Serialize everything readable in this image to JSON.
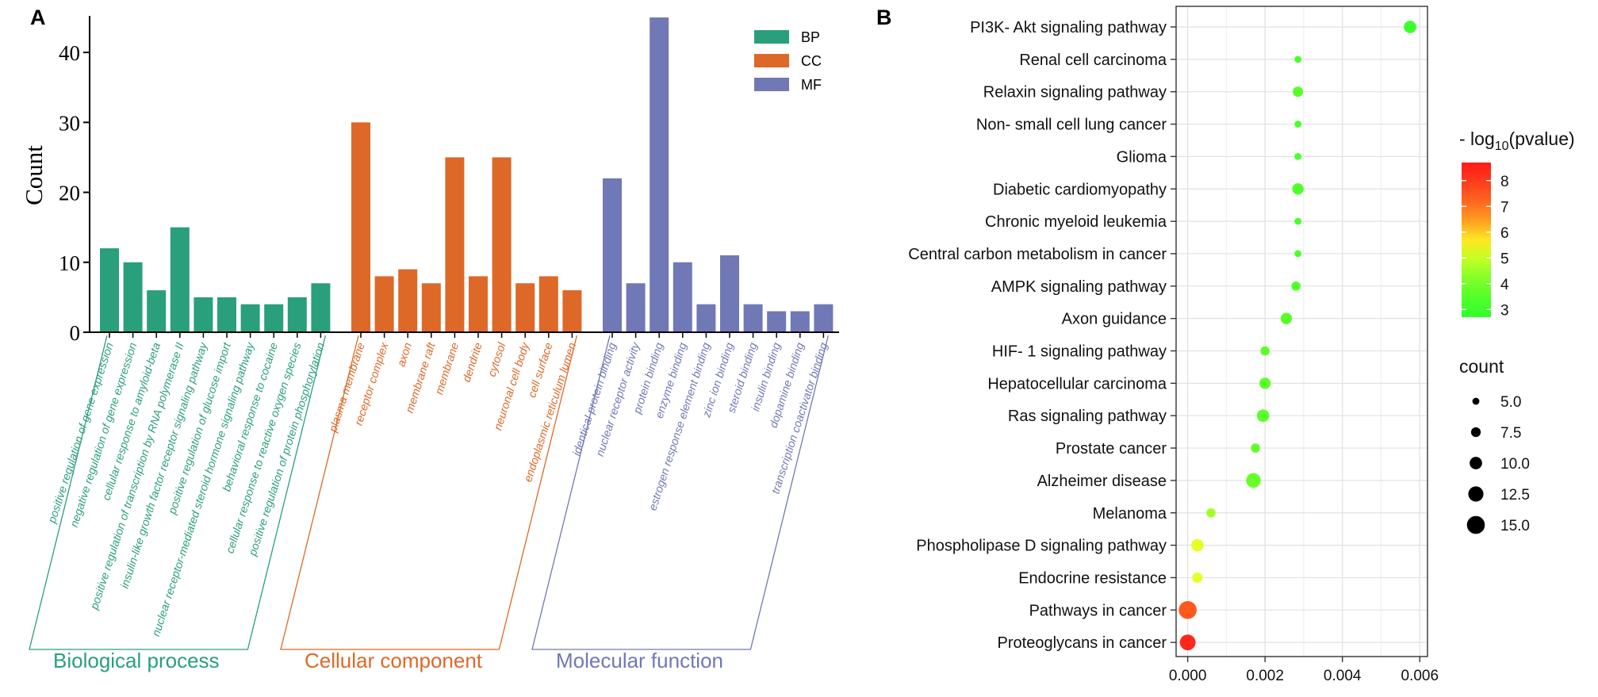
{
  "chart_data": [
    {
      "type": "bar",
      "panel_label": "A",
      "ylabel": "Count",
      "ylim": [
        0,
        45
      ],
      "yticks": [
        0,
        10,
        20,
        30,
        40
      ],
      "legend": [
        {
          "key": "BP",
          "color": "#2a9f7c"
        },
        {
          "key": "CC",
          "color": "#dd6828"
        },
        {
          "key": "MF",
          "color": "#7178b6"
        }
      ],
      "legend_position": "top-right",
      "groups": [
        {
          "key": "BP",
          "name": "Biological process",
          "color": "#2a9f7c",
          "categories": [
            "positive regulation of gene expression",
            "negative regulation of gene expression",
            "cellular response to amyloid-beta",
            "positive regulation of transcription by RNA polymerase II",
            "insulin-like growth factor receptor signaling pathway",
            "positive regulation of glucose import",
            "nuclear receptor-mediated steroid hormone signaling pathway",
            "behavioral response to cocaine",
            "cellular response to reactive oxygen species",
            "positive regulation of protein phosphorylation"
          ],
          "values": [
            12,
            10,
            6,
            15,
            5,
            5,
            4,
            4,
            5,
            7
          ]
        },
        {
          "key": "CC",
          "name": "Cellular component",
          "color": "#dd6828",
          "categories": [
            "plasma membrane",
            "receptor complex",
            "axon",
            "membrane raft",
            "membrane",
            "dendrite",
            "cytosol",
            "neuronal cell body",
            "cell surface",
            "endoplasmic reticulum lumen"
          ],
          "values": [
            30,
            8,
            9,
            7,
            25,
            8,
            25,
            7,
            8,
            6
          ]
        },
        {
          "key": "MF",
          "name": "Molecular function",
          "color": "#7178b6",
          "categories": [
            "identical protein binding",
            "nuclear receptor activity",
            "protein binding",
            "enzyme binding",
            "estrogen response element binding",
            "zinc ion binding",
            "steroid binding",
            "insulin binding",
            "dopamine binding",
            "transcription coactivator binding"
          ],
          "values": [
            22,
            7,
            45,
            10,
            4,
            11,
            4,
            3,
            3,
            4
          ]
        }
      ]
    },
    {
      "type": "scatter",
      "panel_label": "B",
      "xlim": [
        -0.0003,
        0.0062
      ],
      "xticks": [
        "0.000",
        "0.002",
        "0.004",
        "0.006"
      ],
      "grid": true,
      "color_legend_title": "- log",
      "color_legend_sub": "10",
      "color_legend_tail": "(pvalue)",
      "color_ticks": [
        "8",
        "7",
        "6",
        "5",
        "4",
        "3"
      ],
      "color_range": [
        2.7,
        8.7
      ],
      "color_low": "#2cf52c",
      "color_high": "#ff1a1a",
      "size_legend_title": "count",
      "size_ticks": [
        "5.0",
        "7.5",
        "10.0",
        "12.5",
        "15.0"
      ],
      "pathways": [
        {
          "name": "PI3K- Akt signaling pathway",
          "x": 0.00575,
          "log_p": 3.0,
          "count": 10
        },
        {
          "name": "Renal cell carcinoma",
          "x": 0.00285,
          "log_p": 3.3,
          "count": 5
        },
        {
          "name": "Relaxin signaling pathway",
          "x": 0.00285,
          "log_p": 3.5,
          "count": 8
        },
        {
          "name": "Non- small cell lung cancer",
          "x": 0.00285,
          "log_p": 3.3,
          "count": 5
        },
        {
          "name": "Glioma",
          "x": 0.00285,
          "log_p": 3.3,
          "count": 5
        },
        {
          "name": "Diabetic cardiomyopathy",
          "x": 0.00285,
          "log_p": 3.4,
          "count": 9
        },
        {
          "name": "Chronic myeloid leukemia",
          "x": 0.00285,
          "log_p": 3.3,
          "count": 5
        },
        {
          "name": "Central carbon metabolism in cancer",
          "x": 0.00285,
          "log_p": 3.3,
          "count": 5
        },
        {
          "name": "AMPK signaling pathway",
          "x": 0.0028,
          "log_p": 3.4,
          "count": 7
        },
        {
          "name": "Axon guidance",
          "x": 0.00255,
          "log_p": 3.5,
          "count": 9
        },
        {
          "name": "HIF- 1 signaling pathway",
          "x": 0.002,
          "log_p": 3.6,
          "count": 7
        },
        {
          "name": "Hepatocellular carcinoma",
          "x": 0.002,
          "log_p": 3.6,
          "count": 9
        },
        {
          "name": "Ras signaling pathway",
          "x": 0.00195,
          "log_p": 3.6,
          "count": 10
        },
        {
          "name": "Prostate cancer",
          "x": 0.00175,
          "log_p": 3.7,
          "count": 7
        },
        {
          "name": "Alzheimer disease",
          "x": 0.0017,
          "log_p": 3.8,
          "count": 12
        },
        {
          "name": "Melanoma",
          "x": 0.0006,
          "log_p": 4.6,
          "count": 7
        },
        {
          "name": "Phospholipase D signaling pathway",
          "x": 0.00025,
          "log_p": 5.3,
          "count": 10
        },
        {
          "name": "Endocrine resistance",
          "x": 0.00025,
          "log_p": 5.3,
          "count": 8
        },
        {
          "name": "Pathways in cancer",
          "x": 0.0,
          "log_p": 7.4,
          "count": 15
        },
        {
          "name": "Proteoglycans in cancer",
          "x": 0.0,
          "log_p": 8.4,
          "count": 13
        }
      ]
    }
  ]
}
